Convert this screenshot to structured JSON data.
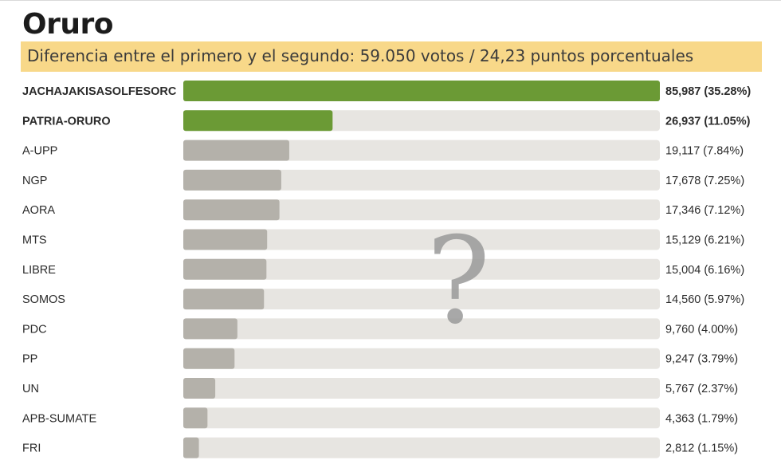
{
  "header": {
    "title": "Oruro",
    "subtitle": "Diferencia entre el primero y el segundo: 59.050 votos / 24,23 puntos porcentuales"
  },
  "overlay": {
    "mark": "?"
  },
  "colors": {
    "leader_bar": "#6b9a35",
    "other_bar": "#b4b1aa",
    "track": "#e7e5e1",
    "banner": "#f8d889"
  },
  "chart_data": {
    "type": "bar",
    "orientation": "horizontal",
    "categories": [
      "JACHAJAKISASOLFESORC",
      "PATRIA-ORURO",
      "A-UPP",
      "NGP",
      "AORA",
      "MTS",
      "LIBRE",
      "SOMOS",
      "PDC",
      "PP",
      "UN",
      "APB-SUMATE",
      "FRI"
    ],
    "values": [
      85987,
      26937,
      19117,
      17678,
      17346,
      15129,
      15004,
      14560,
      9760,
      9247,
      5767,
      4363,
      2812
    ],
    "percentages": [
      35.28,
      11.05,
      7.84,
      7.25,
      7.12,
      6.21,
      6.16,
      5.97,
      4.0,
      3.79,
      2.37,
      1.79,
      1.15
    ],
    "value_labels": [
      "85,987",
      "26,937",
      "19,117",
      "17,678",
      "17,346",
      "15,129",
      "15,004",
      "14,560",
      "9,760",
      "9,247",
      "5,767",
      "4,363",
      "2,812"
    ],
    "percent_labels": [
      "(35.28%)",
      "(11.05%)",
      "(7.84%)",
      "(7.25%)",
      "(7.12%)",
      "(6.21%)",
      "(6.16%)",
      "(5.97%)",
      "(4.00%)",
      "(3.79%)",
      "(2.37%)",
      "(1.79%)",
      "(1.15%)"
    ],
    "highlighted": [
      true,
      true,
      false,
      false,
      false,
      false,
      false,
      false,
      false,
      false,
      false,
      false,
      false
    ],
    "xlim": [
      0,
      85987
    ]
  }
}
